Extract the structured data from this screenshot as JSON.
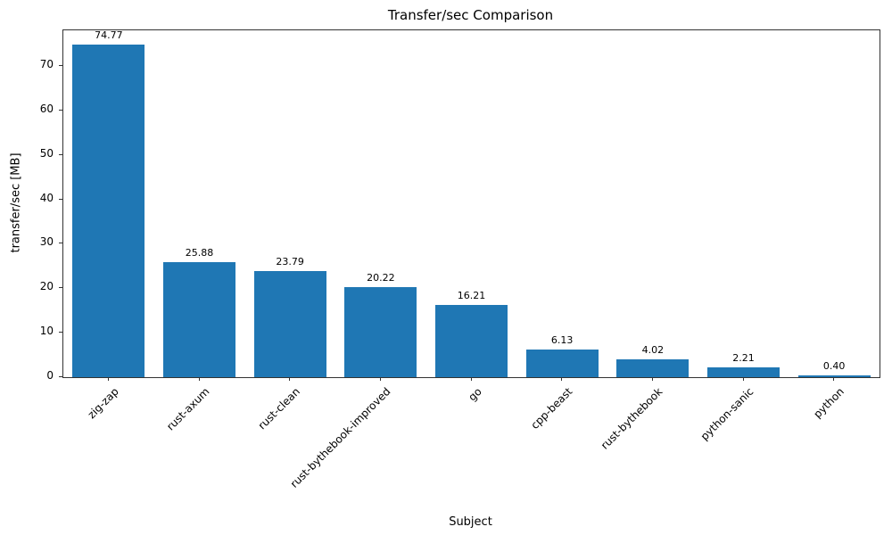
{
  "chart_data": {
    "type": "bar",
    "title": "Transfer/sec Comparison",
    "xlabel": "Subject",
    "ylabel": "transfer/sec [MB]",
    "categories": [
      "zig-zap",
      "rust-axum",
      "rust-clean",
      "rust-bythebook-improved",
      "go",
      "cpp-beast",
      "rust-bythebook",
      "python-sanic",
      "python"
    ],
    "values": [
      74.77,
      25.88,
      23.79,
      20.22,
      16.21,
      6.13,
      4.02,
      2.21,
      0.4
    ],
    "value_labels": [
      "74.77",
      "25.88",
      "23.79",
      "20.22",
      "16.21",
      "6.13",
      "4.02",
      "2.21",
      "0.40"
    ],
    "bar_color": "#1f77b4",
    "ylim": [
      0,
      78
    ],
    "yticks": [
      0,
      10,
      20,
      30,
      40,
      50,
      60,
      70
    ],
    "grid": false,
    "legend": null
  }
}
